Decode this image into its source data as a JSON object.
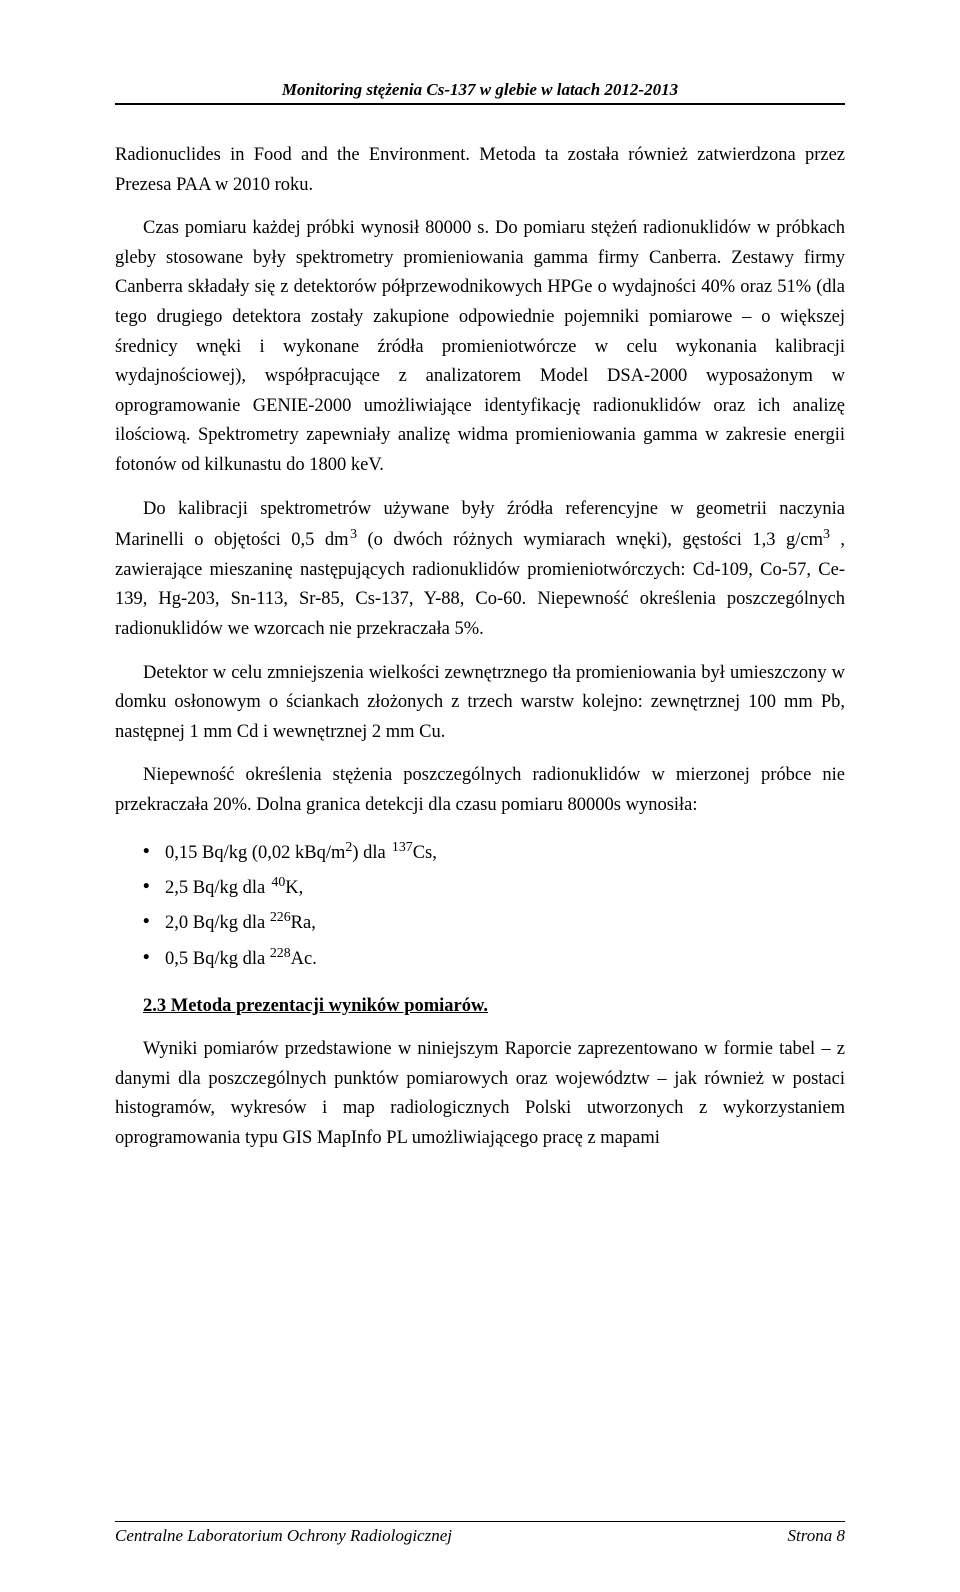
{
  "header": {
    "title": "Monitoring stężenia Cs-137 w glebie w latach 2012-2013"
  },
  "paragraphs": {
    "p1": "Radionuclides in Food and the Environment. Metoda ta została również zatwierdzona przez Prezesa PAA w 2010 roku.",
    "p2": "Czas pomiaru każdej próbki wynosił 80000 s. Do pomiaru stężeń radionuklidów w próbkach gleby stosowane były spektrometry promieniowania gamma firmy Canberra. Zestawy firmy Canberra składały się z detektorów półprzewodnikowych HPGe o wydajności 40% oraz 51% (dla tego drugiego detektora zostały zakupione odpowiednie pojemniki pomiarowe – o większej średnicy wnęki i wykonane źródła promieniotwórcze w celu wykonania kalibracji wydajnościowej), współpracujące z analizatorem Model DSA-2000 wyposażonym w oprogramowanie GENIE-2000 umożliwiające identyfikację radionuklidów oraz ich analizę ilościową. Spektrometry zapewniały analizę widma promieniowania gamma w zakresie energii fotonów od kilkunastu do 1800 keV.",
    "p3_a": "Do kalibracji spektrometrów używane były źródła referencyjne w geometrii naczynia Marinelli o objętości 0,5 dm",
    "p3_b": " (o dwóch różnych wymiarach wnęki),  gęstości 1,3 g/cm",
    "p3_c": " , zawierające mieszaninę następujących radionuklidów promieniotwórczych:  Cd-109, Co-57, Ce-139,  Hg-203,  Sn-113,  Sr-85,  Cs-137,  Y-88,  Co-60.  Niepewność  określenia poszczególnych radionuklidów we wzorcach nie przekraczała 5%.",
    "p4": "Detektor  w  celu  zmniejszenia  wielkości  zewnętrznego  tła  promieniowania  był umieszczony w  domku  osłonowym  o ściankach złożonych z trzech warstw  kolejno: zewnętrznej 100 mm Pb,  następnej 1 mm Cd  i  wewnętrznej 2 mm Cu.",
    "p5": "Niepewność  określenia  stężenia  poszczególnych  radionuklidów  w  mierzonej  próbce nie przekraczała 20%. Dolna granica detekcji dla czasu pomiaru 80000s wynosiła:",
    "p6": "Wyniki pomiarów przedstawione w niniejszym Raporcie zaprezentowano w formie tabel – z danymi dla poszczególnych punktów pomiarowych oraz województw – jak również w postaci  histogramów,  wykresów  i  map  radiologicznych  Polski  utworzonych  z wykorzystaniem oprogramowania typu GIS MapInfo  PL umożliwiającego pracę z mapami"
  },
  "bullets": {
    "b1_a": "0,15 Bq/kg (0,02 kBq/m",
    "b1_b": ") dla ",
    "b1_c": "Cs,",
    "b2_a": "2,5 Bq/kg dla ",
    "b2_b": "K,",
    "b3_a": "2,0 Bq/kg dla ",
    "b3_b": "Ra,",
    "b4_a": "0,5 Bq/kg dla ",
    "b4_b": "Ac."
  },
  "superscripts": {
    "three": "3",
    "two": "2",
    "cs": "137",
    "k": "40",
    "ra": "226",
    "ac": "228"
  },
  "section": {
    "num": "2.3 ",
    "title": "Metoda prezentacji wyników pomiarów."
  },
  "footer": {
    "left": "Centralne Laboratorium Ochrony Radiologicznej",
    "right": "Strona 8"
  }
}
